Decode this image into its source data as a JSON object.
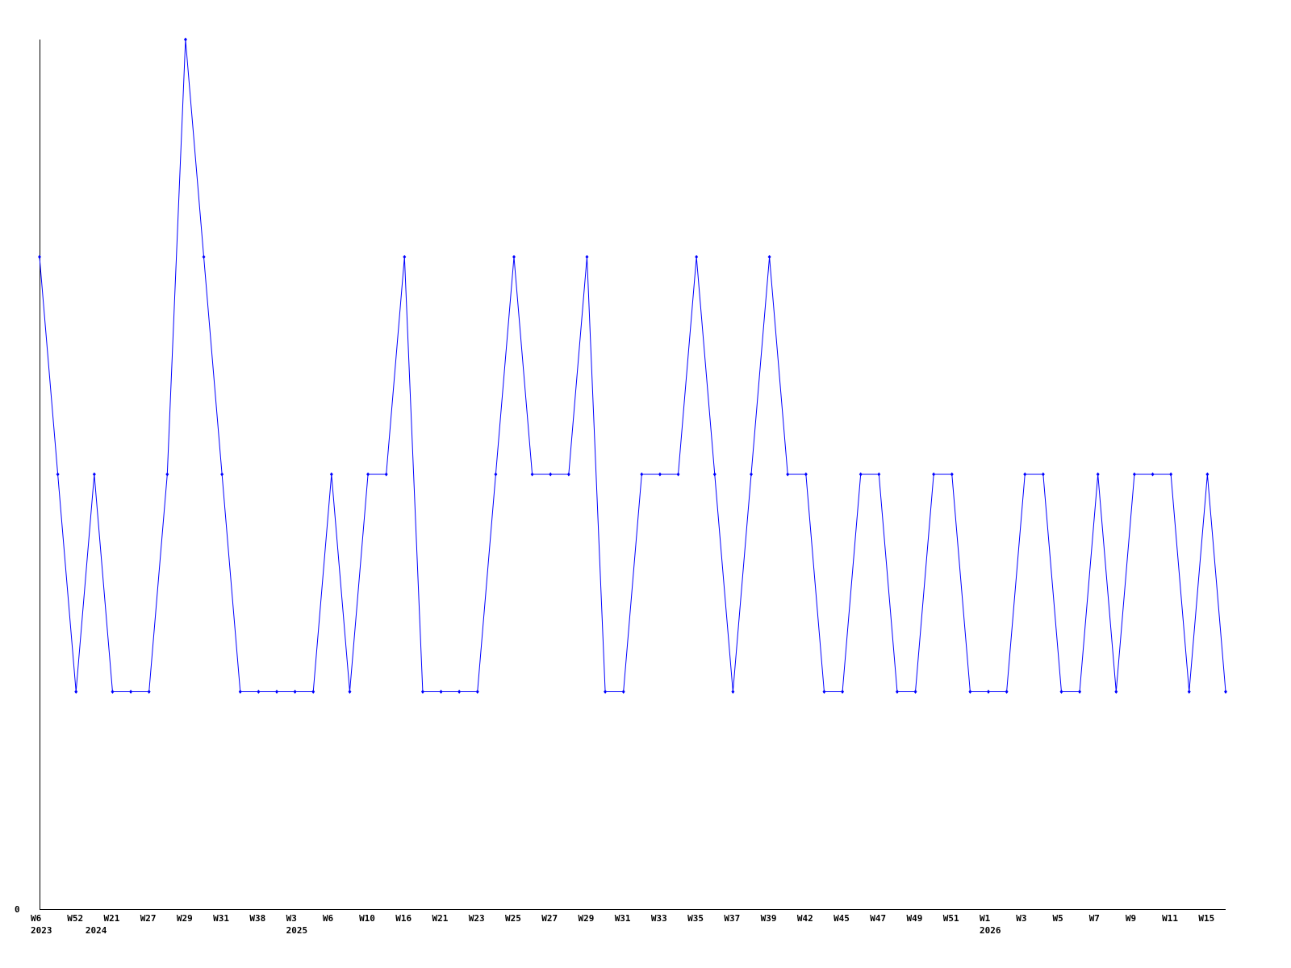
{
  "chart_data": {
    "type": "line",
    "title": "",
    "xlabel": "",
    "ylabel": "",
    "ylim": [
      0,
      4
    ],
    "y_tick_labels": [
      "0"
    ],
    "grid": false,
    "legend": "none",
    "line_color": "#0000ff",
    "axis_color": "#000000",
    "x_tick_labels": [
      "W6",
      "W52",
      "W21",
      "W27",
      "W29",
      "W31",
      "W38",
      "W3",
      "W6",
      "W10",
      "W16",
      "W21",
      "W23",
      "W25",
      "W27",
      "W29",
      "W31",
      "W33",
      "W35",
      "W37",
      "W39",
      "W42",
      "W45",
      "W47",
      "W49",
      "W51",
      "W1",
      "W3",
      "W5",
      "W7",
      "W9",
      "W11",
      "W15"
    ],
    "x_tick_label_every": 2,
    "year_labels": [
      {
        "label": "2023",
        "point_index": 0
      },
      {
        "label": "2024",
        "point_index": 3
      },
      {
        "label": "2025",
        "point_index": 14
      },
      {
        "label": "2026",
        "point_index": 52
      }
    ],
    "values": [
      3,
      2,
      1,
      2,
      1,
      1,
      1,
      2,
      4,
      3,
      2,
      1,
      1,
      1,
      1,
      1,
      2,
      1,
      2,
      2,
      3,
      1,
      1,
      1,
      1,
      2,
      3,
      2,
      2,
      2,
      3,
      1,
      1,
      2,
      2,
      2,
      3,
      2,
      1,
      2,
      3,
      2,
      2,
      1,
      1,
      2,
      2,
      1,
      1,
      2,
      2,
      1,
      1,
      1,
      2,
      2,
      1,
      1,
      2,
      1,
      2,
      2,
      2,
      1,
      2,
      1
    ]
  }
}
